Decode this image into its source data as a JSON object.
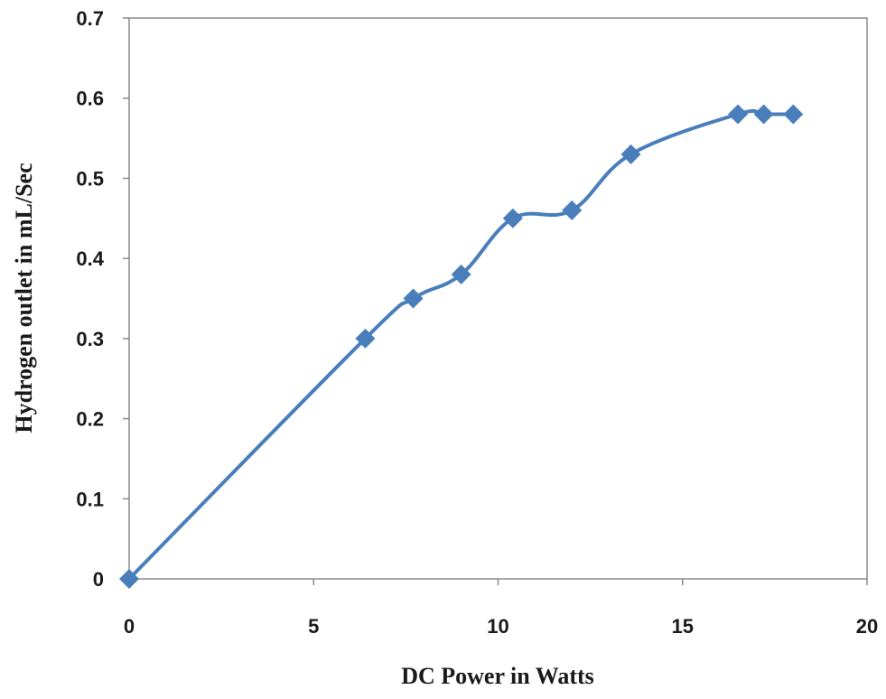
{
  "chart_data": {
    "type": "line",
    "title": "",
    "xlabel": "DC Power in Watts",
    "ylabel": "Hydrogen outlet in mL/Sec",
    "xlim": [
      0,
      20
    ],
    "ylim": [
      0,
      0.7
    ],
    "x_ticks": [
      "0",
      "5",
      "10",
      "15",
      "20"
    ],
    "y_ticks": [
      "0",
      "0.1",
      "0.2",
      "0.3",
      "0.4",
      "0.5",
      "0.6",
      "0.7"
    ],
    "grid": false,
    "legend": "none",
    "line_style": "smoothed",
    "marker": "diamond",
    "color": "#4a7ebb",
    "series": [
      {
        "x": [
          0,
          6.4,
          7.7,
          9.0,
          10.4,
          12.0,
          13.6,
          16.5,
          17.2,
          18.0
        ],
        "y": [
          0,
          0.3,
          0.35,
          0.38,
          0.45,
          0.46,
          0.53,
          0.58,
          0.58,
          0.58
        ]
      }
    ]
  }
}
